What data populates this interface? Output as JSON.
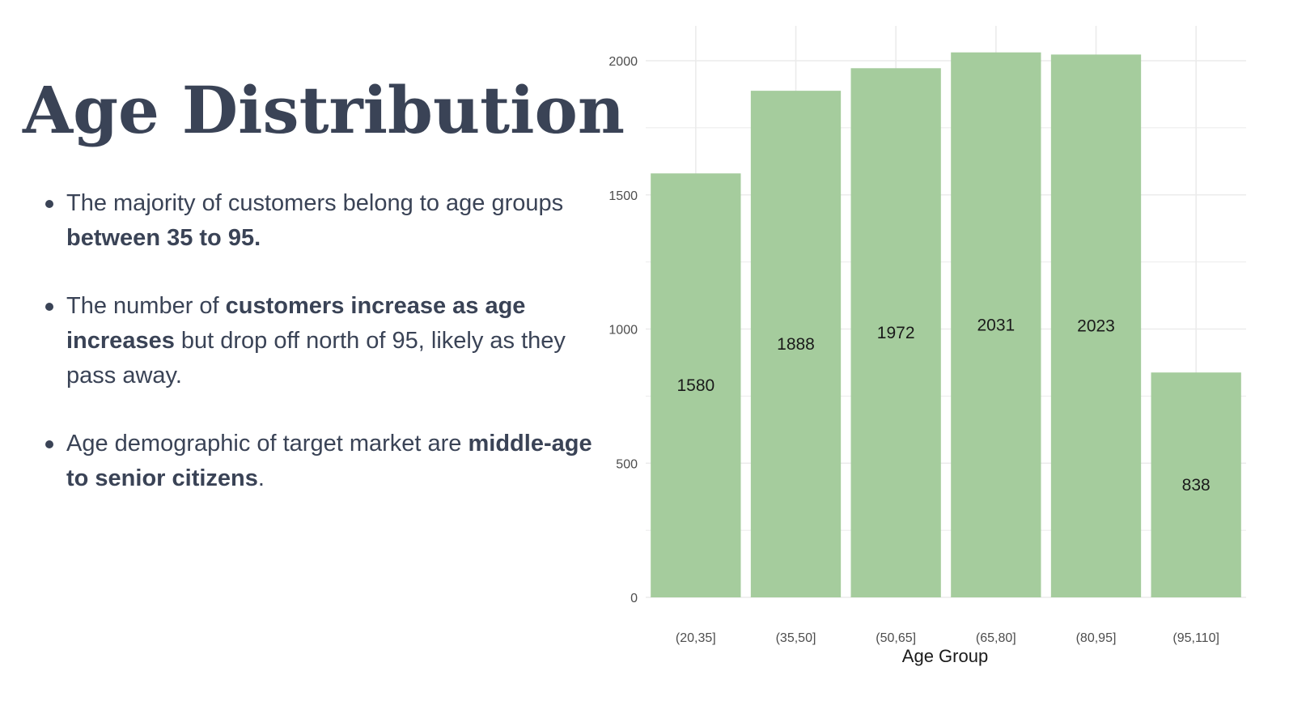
{
  "title": "Age Distribution",
  "bullets": [
    {
      "pre": "The majority of customers belong to age groups ",
      "bold": "between 35 to 95.",
      "post": ""
    },
    {
      "pre": "The number of ",
      "bold": "customers increase as age increases",
      "post": " but drop off north of 95, likely as they pass away."
    },
    {
      "pre": "Age demographic of target market are ",
      "bold": "middle-age to senior citizens",
      "post": "."
    }
  ],
  "chart_data": {
    "type": "bar",
    "categories": [
      "(20,35]",
      "(35,50]",
      "(50,65]",
      "(65,80]",
      "(80,95]",
      "(95,110]"
    ],
    "values": [
      1580,
      1888,
      1972,
      2031,
      2023,
      838
    ],
    "data_labels": [
      "1580",
      "1888",
      "1972",
      "2031",
      "2023",
      "838"
    ],
    "xlabel": "Age Group",
    "ylabel": "",
    "ylim": [
      0,
      2100
    ],
    "yticks": [
      0,
      500,
      1000,
      1500,
      2000
    ],
    "grid": true,
    "colors": {
      "bar": "#a5cc9d",
      "grid": "#ebebeb",
      "text": "#3a4356"
    }
  }
}
